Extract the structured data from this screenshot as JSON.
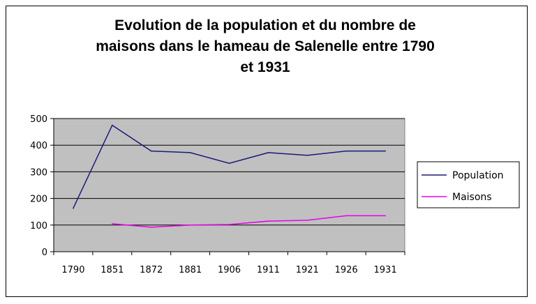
{
  "chart_data": {
    "type": "line",
    "title_lines": [
      "Evolution de la population et du nombre de",
      "maisons dans le hameau de Salenelle entre 1790",
      "et 1931"
    ],
    "categories": [
      "1790",
      "1851",
      "1872",
      "1881",
      "1906",
      "1911",
      "1921",
      "1926",
      "1931"
    ],
    "series": [
      {
        "name": "Population",
        "color": "#1a1a7a",
        "values": [
          163,
          475,
          378,
          372,
          332,
          372,
          362,
          378,
          378
        ]
      },
      {
        "name": "Maisons",
        "color": "#e800e8",
        "values": [
          null,
          105,
          92,
          100,
          102,
          115,
          118,
          135,
          135
        ]
      }
    ],
    "ylim": [
      0,
      500
    ],
    "yticks": [
      0,
      100,
      200,
      300,
      400,
      500
    ],
    "grid": true,
    "plot_background": "#c0c0c0",
    "legend_position": "right"
  }
}
